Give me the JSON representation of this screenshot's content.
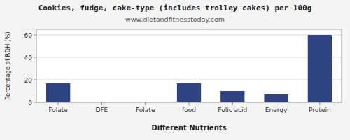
{
  "chart_data": {
    "type": "bar",
    "title": "Cookies, fudge, cake-type (includes trolley cakes) per 100g",
    "subtitle": "www.dietandfitnesstoday.com",
    "xlabel": "Different Nutrients",
    "ylabel": "Percentage of RDH (%)",
    "categories": [
      "Folate",
      "DFE",
      "Folate",
      "food",
      "Folic acid",
      "Energy",
      "Protein"
    ],
    "values": [
      17,
      0,
      0,
      17,
      10,
      7,
      60
    ],
    "color": "#2e4482",
    "ylim": [
      0,
      65
    ],
    "yticks": [
      0,
      20,
      40,
      60
    ],
    "grid": true
  }
}
